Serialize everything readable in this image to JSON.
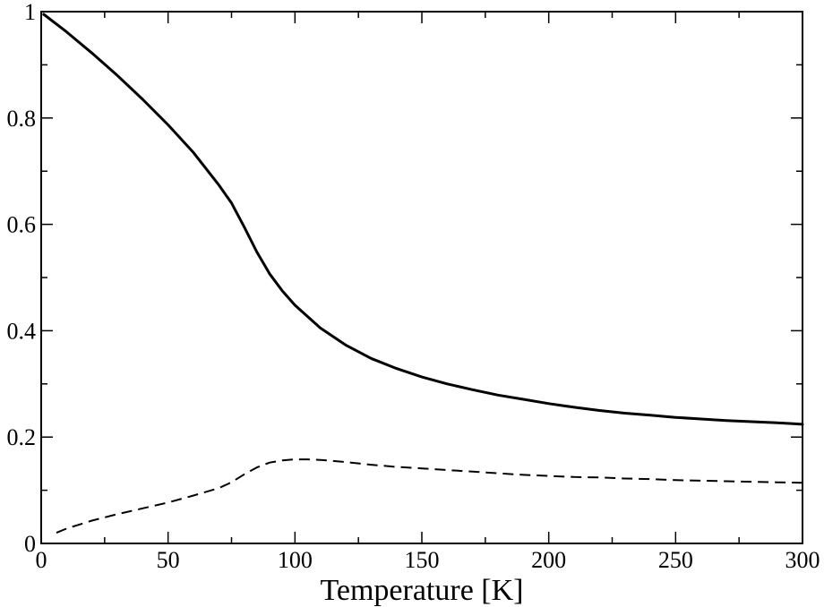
{
  "chart_data": {
    "type": "line",
    "title": "",
    "xlabel": "Temperature [K]",
    "ylabel": "",
    "xlim": [
      0,
      300
    ],
    "ylim": [
      0,
      1
    ],
    "grid": false,
    "x_major_ticks": [
      0,
      50,
      100,
      150,
      200,
      250,
      300
    ],
    "x_tick_labels": [
      "0",
      "50",
      "100",
      "150",
      "200",
      "250",
      "300"
    ],
    "x_minor_step": 25,
    "y_major_ticks": [
      0,
      0.2,
      0.4,
      0.6,
      0.8,
      1
    ],
    "y_tick_labels": [
      "0",
      "0.2",
      "0.4",
      "0.6",
      "0.8",
      "1"
    ],
    "y_minor_step": 0.1,
    "series": [
      {
        "style": "solid",
        "color": "#000000",
        "x": [
          1,
          10,
          20,
          30,
          40,
          50,
          60,
          70,
          75,
          80,
          85,
          90,
          95,
          100,
          110,
          120,
          130,
          140,
          150,
          160,
          170,
          180,
          190,
          200,
          210,
          220,
          230,
          240,
          250,
          260,
          270,
          280,
          290,
          300
        ],
        "y": [
          0.995,
          0.962,
          0.922,
          0.88,
          0.835,
          0.787,
          0.735,
          0.674,
          0.64,
          0.595,
          0.548,
          0.507,
          0.475,
          0.448,
          0.405,
          0.373,
          0.348,
          0.329,
          0.313,
          0.3,
          0.289,
          0.279,
          0.271,
          0.263,
          0.256,
          0.25,
          0.245,
          0.241,
          0.237,
          0.234,
          0.231,
          0.229,
          0.227,
          0.224
        ]
      },
      {
        "style": "dashed",
        "color": "#000000",
        "x": [
          6,
          10,
          20,
          30,
          40,
          50,
          60,
          70,
          75,
          80,
          85,
          90,
          95,
          100,
          105,
          110,
          120,
          130,
          140,
          150,
          160,
          170,
          180,
          190,
          200,
          210,
          220,
          230,
          240,
          250,
          260,
          270,
          280,
          290,
          300
        ],
        "y": [
          0.02,
          0.028,
          0.043,
          0.055,
          0.066,
          0.077,
          0.09,
          0.104,
          0.115,
          0.13,
          0.143,
          0.152,
          0.156,
          0.158,
          0.158,
          0.157,
          0.153,
          0.148,
          0.144,
          0.141,
          0.138,
          0.135,
          0.132,
          0.129,
          0.127,
          0.125,
          0.124,
          0.122,
          0.121,
          0.119,
          0.118,
          0.117,
          0.116,
          0.115,
          0.114
        ]
      }
    ]
  }
}
